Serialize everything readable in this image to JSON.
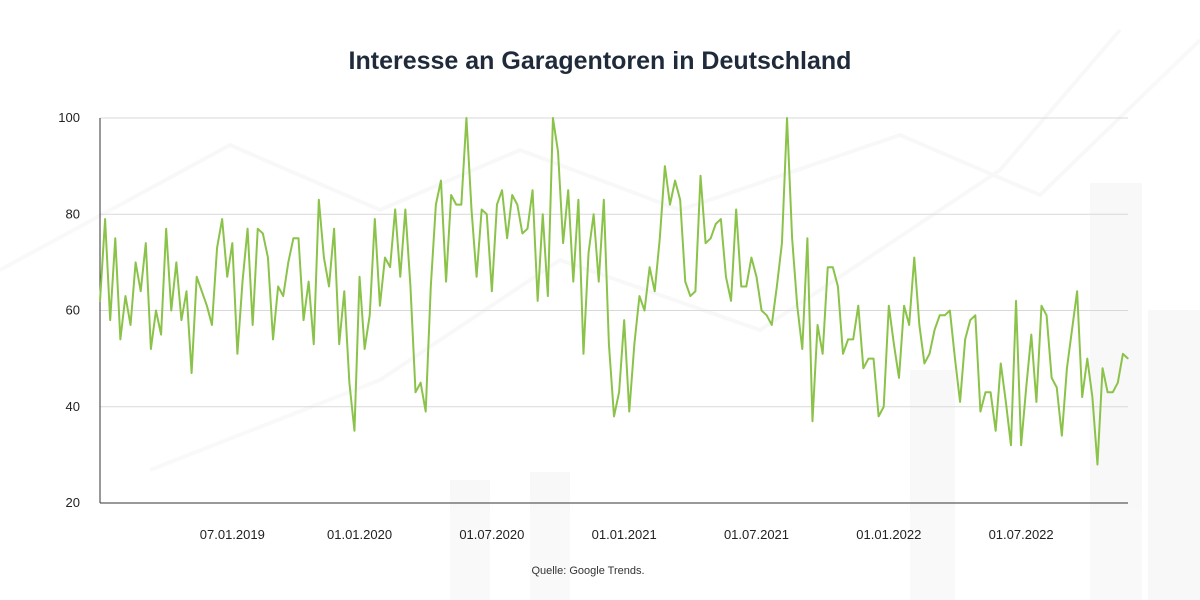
{
  "chart_data": {
    "type": "line",
    "title": "Interesse an Garagentoren in Deutschland",
    "source": "Quelle: Google Trends.",
    "xlabel": "",
    "ylabel": "",
    "ylim": [
      20,
      100
    ],
    "y_ticks": [
      20,
      40,
      60,
      80,
      100
    ],
    "x_ticks": [
      {
        "label": "07.01.2019",
        "index": 26
      },
      {
        "label": "01.01.2020",
        "index": 51
      },
      {
        "label": "01.07.2020",
        "index": 77
      },
      {
        "label": "01.01.2021",
        "index": 103
      },
      {
        "label": "01.07.2021",
        "index": 129
      },
      {
        "label": "01.01.2022",
        "index": 155
      },
      {
        "label": "01.07.2022",
        "index": 181
      }
    ],
    "grid": true,
    "line_color": "#8bc34a",
    "series": [
      {
        "values": [
          62,
          79,
          58,
          75,
          54,
          63,
          57,
          70,
          64,
          74,
          52,
          60,
          55,
          77,
          60,
          70,
          58,
          64,
          47,
          67,
          64,
          61,
          57,
          73,
          79,
          67,
          74,
          51,
          66,
          77,
          57,
          77,
          76,
          71,
          54,
          65,
          63,
          70,
          75,
          75,
          58,
          66,
          53,
          83,
          71,
          65,
          77,
          53,
          64,
          45,
          35,
          67,
          52,
          59,
          79,
          61,
          71,
          69,
          81,
          67,
          81,
          65,
          43,
          45,
          39,
          65,
          82,
          87,
          66,
          84,
          82,
          82,
          100,
          81,
          67,
          81,
          80,
          64,
          82,
          85,
          75,
          84,
          82,
          76,
          77,
          85,
          62,
          80,
          63,
          100,
          93,
          74,
          85,
          66,
          83,
          51,
          72,
          80,
          66,
          83,
          53,
          38,
          43,
          58,
          39,
          53,
          63,
          60,
          69,
          64,
          75,
          90,
          82,
          87,
          83,
          66,
          63,
          64,
          88,
          74,
          75,
          78,
          79,
          67,
          62,
          81,
          65,
          65,
          71,
          67,
          60,
          59,
          57,
          65,
          74,
          100,
          75,
          61,
          52,
          75,
          37,
          57,
          51,
          69,
          69,
          65,
          51,
          54,
          54,
          61,
          48,
          50,
          50,
          38,
          40,
          61,
          53,
          46,
          61,
          57,
          71,
          57,
          49,
          51,
          56,
          59,
          59,
          60,
          50,
          41,
          54,
          58,
          59,
          39,
          43,
          43,
          35,
          49,
          41,
          32,
          62,
          32,
          44,
          55,
          41,
          61,
          59,
          46,
          44,
          34,
          48,
          56,
          64,
          42,
          50,
          42,
          28,
          48,
          43,
          43,
          45,
          51,
          50
        ]
      }
    ]
  }
}
